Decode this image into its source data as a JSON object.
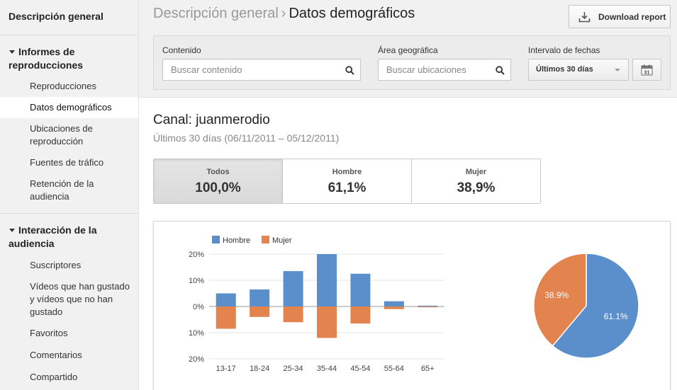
{
  "sidebar": {
    "top_link": "Descripción general",
    "sections": [
      {
        "title": "Informes de reproducciones",
        "items": [
          {
            "label": "Reproducciones",
            "active": false
          },
          {
            "label": "Datos demográficos",
            "active": true
          },
          {
            "label": "Ubicaciones de reproducción",
            "active": false
          },
          {
            "label": "Fuentes de tráfico",
            "active": false
          },
          {
            "label": "Retención de la audiencia",
            "active": false
          }
        ]
      },
      {
        "title": "Interacción de la audiencia",
        "items": [
          {
            "label": "Suscriptores"
          },
          {
            "label": "Vídeos que han gustado y vídeos que no han gustado"
          },
          {
            "label": "Favoritos"
          },
          {
            "label": "Comentarios"
          },
          {
            "label": "Compartido"
          }
        ]
      }
    ]
  },
  "header": {
    "breadcrumb_parent": "Descripción general",
    "breadcrumb_sep": "›",
    "breadcrumb_current": "Datos demográficos",
    "download_label": "Download report"
  },
  "filters": {
    "content_label": "Contenido",
    "content_placeholder": "Buscar contenido",
    "geo_label": "Área geográfica",
    "geo_placeholder": "Buscar ubicaciones",
    "date_label": "Intervalo de fechas",
    "date_value": "Últimos 30 días",
    "calendar_day": "31"
  },
  "channel": {
    "title": "Canal: juanmerodio",
    "date_range": "Últimos 30 días (06/11/2011 – 05/12/2011)"
  },
  "tabs": [
    {
      "label": "Todos",
      "value": "100,0%",
      "selected": true
    },
    {
      "label": "Hombre",
      "value": "61,1%",
      "selected": false
    },
    {
      "label": "Mujer",
      "value": "38,9%",
      "selected": false
    }
  ],
  "colors": {
    "hombre": "#5b8fcb",
    "mujer": "#e3834e"
  },
  "chart_data": [
    {
      "type": "bar",
      "categories": [
        "13-17",
        "18-24",
        "25-34",
        "35-44",
        "45-54",
        "55-64",
        "65+"
      ],
      "series": [
        {
          "name": "Hombre",
          "values": [
            5,
            6.5,
            13.5,
            20,
            12.5,
            2,
            0.3
          ]
        },
        {
          "name": "Mujer",
          "values": [
            8.5,
            4,
            6,
            12,
            6.5,
            1,
            0.3
          ]
        }
      ],
      "y_ticks": [
        "20%",
        "10%",
        "0%",
        "10%",
        "20%"
      ],
      "ylim": [
        -20,
        20
      ],
      "legend": "top-left",
      "grid": true
    },
    {
      "type": "pie",
      "slices": [
        {
          "name": "Hombre",
          "value": 61.1,
          "label": "61.1%"
        },
        {
          "name": "Mujer",
          "value": 38.9,
          "label": "38.9%"
        }
      ]
    }
  ]
}
